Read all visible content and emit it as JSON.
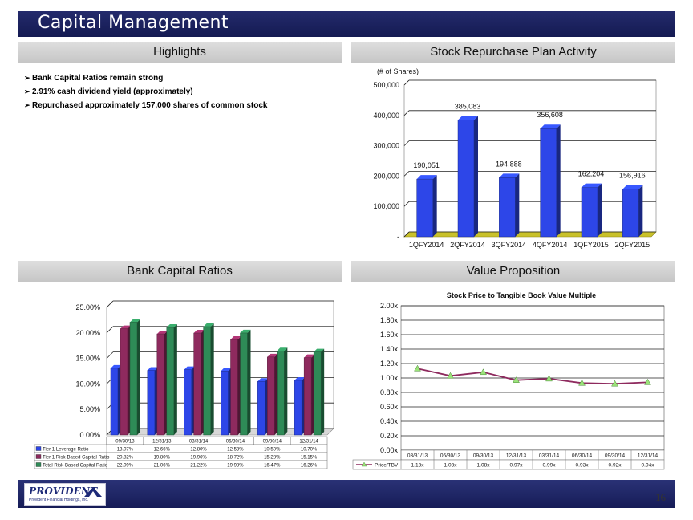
{
  "header": {
    "title": "Capital Management"
  },
  "highlights": {
    "heading": "Highlights",
    "bullet_marker": "➢",
    "items": [
      "Bank Capital Ratios remain strong",
      "2.91% cash dividend yield (approximately)",
      "Repurchased approximately 157,000 shares of common stock"
    ]
  },
  "repurchase": {
    "heading": "Stock Repurchase Plan Activity"
  },
  "capital": {
    "heading": "Bank Capital Ratios"
  },
  "value": {
    "heading": "Value Proposition"
  },
  "footer": {
    "logo_text": "PROVIDENT",
    "logo_subtext": "Provident Financial Holdings, Inc.",
    "page_number": "16"
  },
  "chart_data": [
    {
      "type": "bar",
      "title": "",
      "unit_label": "(# of Shares)",
      "categories": [
        "1QFY2014",
        "2QFY2014",
        "3QFY2014",
        "4QFY2014",
        "1QFY2015",
        "2QFY2015"
      ],
      "values": [
        190051,
        385083,
        194888,
        356608,
        162204,
        156916
      ],
      "data_labels": [
        "190,051",
        "385,083",
        "194,888",
        "356,608",
        "162,204",
        "156,916"
      ],
      "ylim": [
        0,
        500000
      ],
      "yticks": [
        "-",
        "100,000",
        "200,000",
        "300,000",
        "400,000",
        "500,000"
      ],
      "grid": true,
      "bar_color": "#2d46e8"
    },
    {
      "type": "bar",
      "title": "",
      "categories": [
        "09/30/13",
        "12/31/13",
        "03/31/14",
        "06/30/14",
        "09/30/14",
        "12/31/14"
      ],
      "series": [
        {
          "name": "Tier 1 Leverage Ratio",
          "color": "#2d46e8",
          "values": [
            13.07,
            12.66,
            12.8,
            12.53,
            10.5,
            10.7
          ],
          "labels": [
            "13.07%",
            "12.66%",
            "12.80%",
            "12.53%",
            "10.50%",
            "10.70%"
          ]
        },
        {
          "name": "Tier 1 Risk-Based Capital Ratio",
          "color": "#8e2a5e",
          "values": [
            20.82,
            19.8,
            19.96,
            18.72,
            15.28,
            15.15
          ],
          "labels": [
            "20.82%",
            "19.80%",
            "19.96%",
            "18.72%",
            "15.28%",
            "15.15%"
          ]
        },
        {
          "name": "Total Risk-Based Capital Ratio",
          "color": "#2e8b57",
          "values": [
            22.09,
            21.06,
            21.22,
            19.98,
            16.47,
            16.26
          ],
          "labels": [
            "22.09%",
            "21.06%",
            "21.22%",
            "19.98%",
            "16.47%",
            "16.26%"
          ]
        }
      ],
      "ylim": [
        0,
        25
      ],
      "yticks": [
        "0.00%",
        "5.00%",
        "10.00%",
        "15.00%",
        "20.00%",
        "25.00%"
      ],
      "grid": true,
      "legend": "data-table-below"
    },
    {
      "type": "line",
      "title": "Stock Price to Tangible Book Value Multiple",
      "categories": [
        "03/31/13",
        "06/30/13",
        "09/30/13",
        "12/31/13",
        "03/31/14",
        "06/30/14",
        "09/30/14",
        "12/31/14"
      ],
      "series": [
        {
          "name": "Price/TBV",
          "color": "#8e2a5e",
          "marker_color": "#9be37a",
          "values": [
            1.13,
            1.03,
            1.08,
            0.97,
            0.99,
            0.93,
            0.92,
            0.94
          ],
          "labels": [
            "1.13x",
            "1.03x",
            "1.08x",
            "0.97x",
            "0.99x",
            "0.93x",
            "0.92x",
            "0.94x"
          ]
        }
      ],
      "ylim": [
        0,
        2.0
      ],
      "yticks": [
        "0.00x",
        "0.20x",
        "0.40x",
        "0.60x",
        "0.80x",
        "1.00x",
        "1.20x",
        "1.40x",
        "1.60x",
        "1.80x",
        "2.00x"
      ],
      "grid": true,
      "legend": "data-table-below"
    }
  ]
}
